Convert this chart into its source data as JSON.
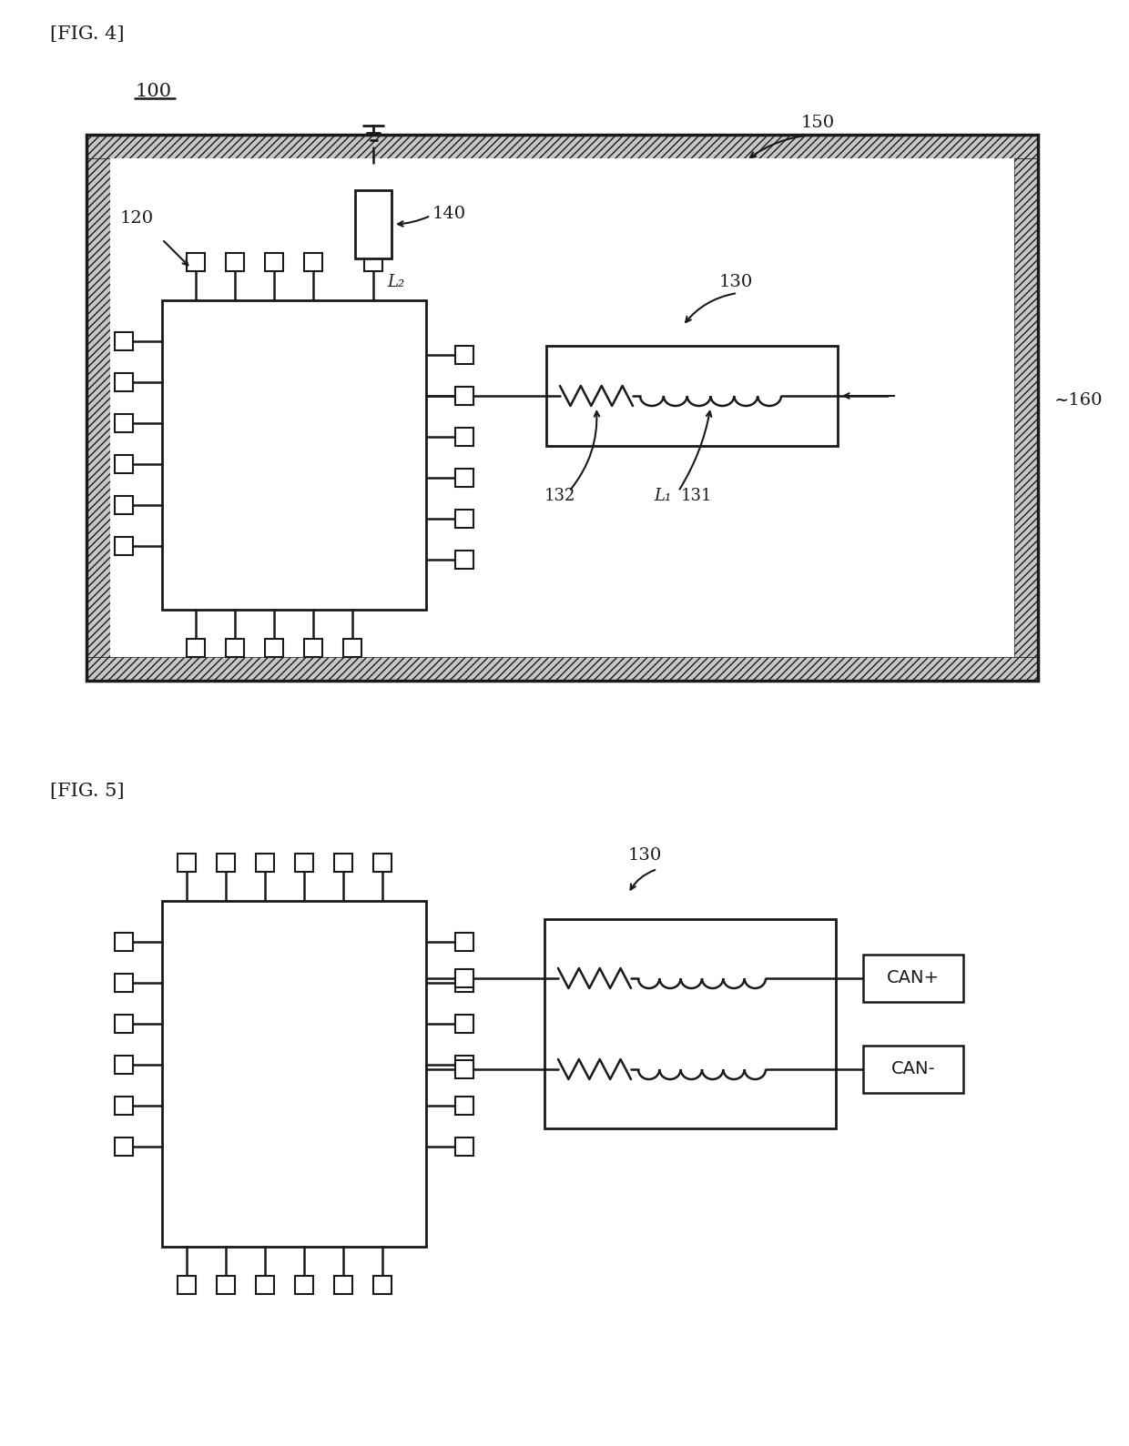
{
  "bg_color": "#ffffff",
  "fig4_label": "[FIG. 4]",
  "fig5_label": "[FIG. 5]",
  "label_100": "100",
  "label_120": "120",
  "label_130": "130",
  "label_131": "131",
  "label_132": "132",
  "label_140": "140",
  "label_150": "150",
  "label_160": "~160",
  "label_L1": "L₁",
  "label_L2": "L₂",
  "label_CAN_plus": "CAN+",
  "label_CAN_minus": "CAN-",
  "line_color": "#1a1a1a",
  "hatch_fill": "#c8c8c8"
}
